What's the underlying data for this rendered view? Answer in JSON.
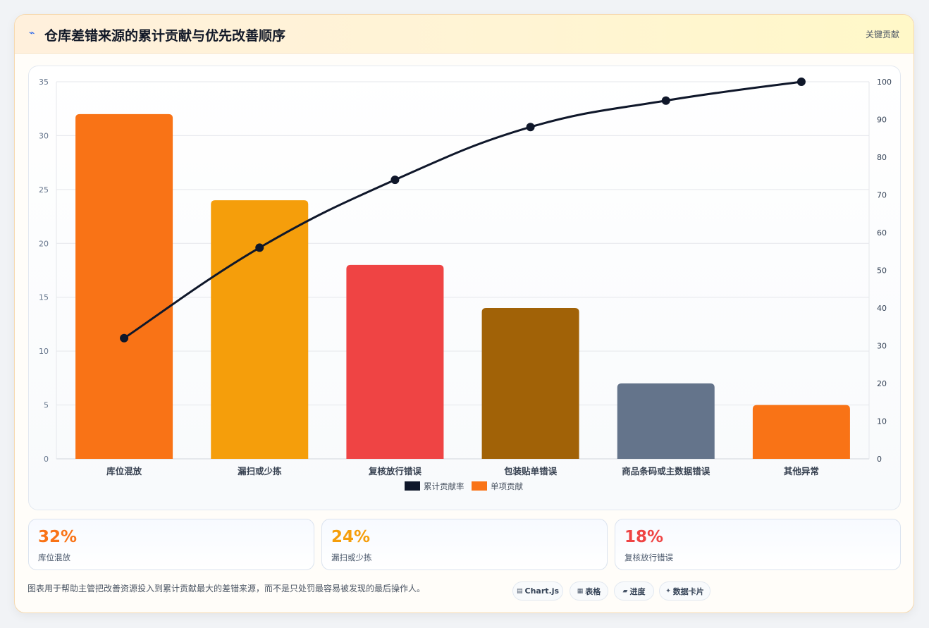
{
  "header": {
    "icon": "lightning-icon",
    "title": "仓库差错来源的累计贡献与优先改善顺序",
    "badge": "关键贡献"
  },
  "chart_data": {
    "type": "bar",
    "categories": [
      "库位混放",
      "漏扫或少拣",
      "复核放行错误",
      "包装贴单错误",
      "商品条码或主数据错误",
      "其他异常"
    ],
    "series": [
      {
        "name": "单项贡献",
        "type": "bar",
        "axis": "left",
        "values": [
          32,
          24,
          18,
          14,
          7,
          5
        ],
        "colors": [
          "#f97316",
          "#f59e0b",
          "#ef4444",
          "#a16207",
          "#64748b",
          "#f97316"
        ]
      },
      {
        "name": "累计贡献率",
        "type": "line",
        "axis": "right",
        "values": [
          32,
          56,
          74,
          88,
          95,
          100
        ],
        "color": "#0f172a"
      }
    ],
    "ylim": [
      0,
      35
    ],
    "yticks": [
      0,
      5,
      10,
      15,
      20,
      25,
      30,
      35
    ],
    "y2lim": [
      0,
      100
    ],
    "y2ticks": [
      0,
      10,
      20,
      30,
      40,
      50,
      60,
      70,
      80,
      90,
      100
    ],
    "legend": [
      {
        "label": "累计贡献率",
        "color": "#0f172a"
      },
      {
        "label": "单项贡献",
        "color": "#f97316"
      }
    ],
    "legend_position": "bottom",
    "grid": true
  },
  "stats": [
    {
      "value": "32%",
      "label": "库位混放",
      "color": "#f97316"
    },
    {
      "value": "24%",
      "label": "漏扫或少拣",
      "color": "#f59e0b"
    },
    {
      "value": "18%",
      "label": "复核放行错误",
      "color": "#ef4444"
    }
  ],
  "footer": {
    "note": "图表用于帮助主管把改善资源投入到累计贡献最大的差错来源，而不是只处罚最容易被发现的最后操作人。",
    "pills": [
      {
        "icon": "chart-icon",
        "label": "Chart.js"
      },
      {
        "icon": "table-icon",
        "label": "表格"
      },
      {
        "icon": "progress-icon",
        "label": "进度"
      },
      {
        "icon": "card-icon",
        "label": "数据卡片"
      }
    ]
  }
}
